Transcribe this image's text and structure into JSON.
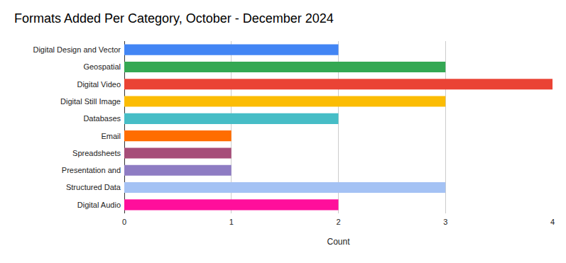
{
  "chart_data": {
    "type": "bar",
    "orientation": "horizontal",
    "title": "Formats Added Per Category, October - December 2024",
    "x_label": "Count",
    "categories": [
      "Digital Design and Vector",
      "Geospatial",
      "Digital Video",
      "Digital Still Image",
      "Databases",
      "Email",
      "Spreadsheets",
      "Presentation and",
      "Structured Data",
      "Digital Audio"
    ],
    "values": [
      2,
      3,
      4,
      3,
      2,
      1,
      1,
      1,
      3,
      2
    ],
    "colors": [
      "#4285f4",
      "#34a853",
      "#ea4335",
      "#fbbc04",
      "#46bdc6",
      "#ff6d01",
      "#a64d79",
      "#8e7cc3",
      "#a4c2f4",
      "#ff0f9b"
    ],
    "xlim": [
      0,
      4
    ],
    "xticks": [
      0,
      1,
      2,
      3,
      4
    ],
    "grid": true
  }
}
